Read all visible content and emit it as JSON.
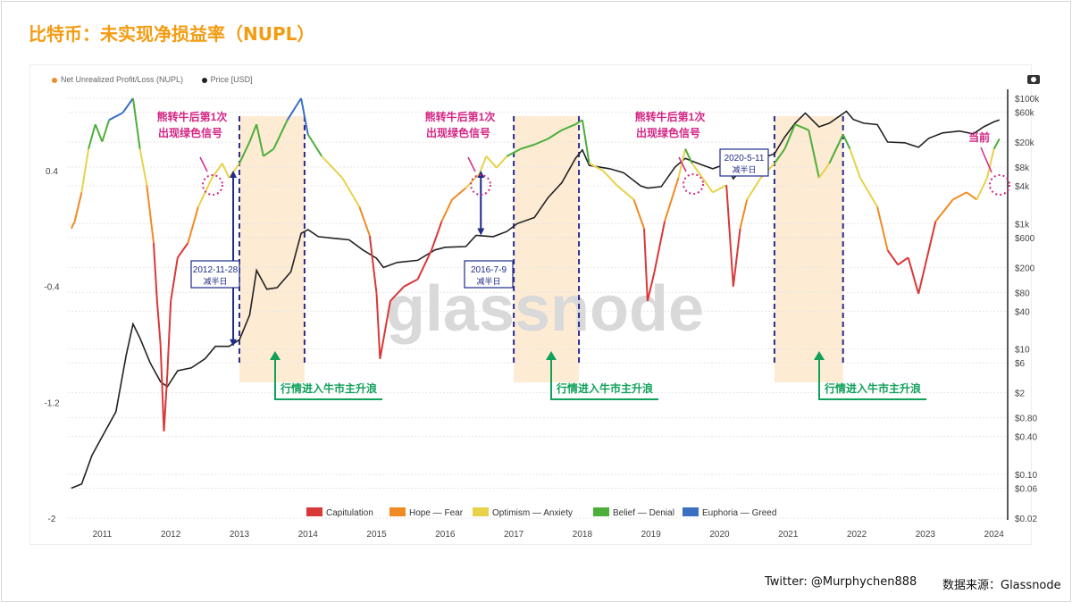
{
  "page": {
    "title": "比特币：未实现净损益率（NUPL）",
    "footer_twitter": "Twitter: @Murphychen888",
    "footer_source": "数据来源：Glassnode"
  },
  "chart_data": {
    "type": "line",
    "x_range": [
      2010.5,
      2024.2
    ],
    "x_ticks": [
      "2011",
      "2012",
      "2013",
      "2014",
      "2015",
      "2016",
      "2017",
      "2018",
      "2019",
      "2020",
      "2021",
      "2022",
      "2023",
      "2024"
    ],
    "left_axis": {
      "ticks": [
        "0.4",
        "-0.4",
        "-1.2",
        "-2"
      ],
      "values": [
        0.4,
        -0.4,
        -1.2,
        -2
      ],
      "range": [
        -2,
        0.9
      ]
    },
    "right_axis": {
      "type": "log",
      "ticks": [
        "$100k",
        "$60k",
        "$20k",
        "$8k",
        "$4k",
        "$1k",
        "$600",
        "$200",
        "$80",
        "$40",
        "$10",
        "$6",
        "$2",
        "$0.80",
        "$0.40",
        "$0.10",
        "$0.06",
        "$0.02"
      ],
      "values": [
        100000,
        60000,
        20000,
        8000,
        4000,
        1000,
        600,
        200,
        80,
        40,
        10,
        6,
        2,
        0.8,
        0.4,
        0.1,
        0.06,
        0.02
      ]
    },
    "legend_top": [
      {
        "name": "Net Unrealized Profit/Loss (NUPL)",
        "color": "#f08a24"
      },
      {
        "name": "Price [USD]",
        "color": "#222222"
      }
    ],
    "legend_bottom": [
      {
        "name": "Capitulation",
        "color": "#d93838"
      },
      {
        "name": "Hope — Fear",
        "color": "#f08a24"
      },
      {
        "name": "Optimism — Anxiety",
        "color": "#e8d24a"
      },
      {
        "name": "Belief — Denial",
        "color": "#4caf3a"
      },
      {
        "name": "Euphoria — Greed",
        "color": "#3b6fc4"
      }
    ],
    "zone_colors": {
      "capitulation": "#d93838",
      "hope": "#f08a24",
      "optimism": "#e8d24a",
      "belief": "#4caf3a",
      "euphoria": "#3b6fc4"
    },
    "series": [
      {
        "name": "Net Unrealized Profit/Loss (NUPL)",
        "points": [
          [
            2010.55,
            0.0
          ],
          [
            2010.6,
            0.05
          ],
          [
            2010.7,
            0.25
          ],
          [
            2010.8,
            0.55
          ],
          [
            2010.9,
            0.72
          ],
          [
            2011.0,
            0.6
          ],
          [
            2011.1,
            0.75
          ],
          [
            2011.3,
            0.8
          ],
          [
            2011.45,
            0.9
          ],
          [
            2011.55,
            0.55
          ],
          [
            2011.65,
            0.3
          ],
          [
            2011.75,
            -0.1
          ],
          [
            2011.8,
            -0.5
          ],
          [
            2011.85,
            -0.8
          ],
          [
            2011.9,
            -1.4
          ],
          [
            2011.95,
            -1.0
          ],
          [
            2012.0,
            -0.5
          ],
          [
            2012.1,
            -0.2
          ],
          [
            2012.25,
            -0.1
          ],
          [
            2012.4,
            0.15
          ],
          [
            2012.6,
            0.35
          ],
          [
            2012.75,
            0.45
          ],
          [
            2012.85,
            0.35
          ],
          [
            2013.0,
            0.45
          ],
          [
            2013.15,
            0.6
          ],
          [
            2013.25,
            0.72
          ],
          [
            2013.35,
            0.5
          ],
          [
            2013.5,
            0.55
          ],
          [
            2013.7,
            0.75
          ],
          [
            2013.9,
            0.9
          ],
          [
            2014.0,
            0.65
          ],
          [
            2014.2,
            0.5
          ],
          [
            2014.5,
            0.35
          ],
          [
            2014.75,
            0.15
          ],
          [
            2014.9,
            -0.05
          ],
          [
            2015.0,
            -0.45
          ],
          [
            2015.05,
            -0.9
          ],
          [
            2015.2,
            -0.5
          ],
          [
            2015.4,
            -0.4
          ],
          [
            2015.6,
            -0.35
          ],
          [
            2015.8,
            -0.15
          ],
          [
            2015.95,
            0.05
          ],
          [
            2016.1,
            0.2
          ],
          [
            2016.3,
            0.28
          ],
          [
            2016.5,
            0.38
          ],
          [
            2016.6,
            0.5
          ],
          [
            2016.75,
            0.42
          ],
          [
            2016.9,
            0.5
          ],
          [
            2017.1,
            0.55
          ],
          [
            2017.3,
            0.58
          ],
          [
            2017.5,
            0.62
          ],
          [
            2017.7,
            0.68
          ],
          [
            2017.9,
            0.72
          ],
          [
            2018.0,
            0.75
          ],
          [
            2018.1,
            0.45
          ],
          [
            2018.3,
            0.4
          ],
          [
            2018.5,
            0.3
          ],
          [
            2018.75,
            0.2
          ],
          [
            2018.9,
            0.0
          ],
          [
            2018.95,
            -0.5
          ],
          [
            2019.05,
            -0.3
          ],
          [
            2019.2,
            0.05
          ],
          [
            2019.4,
            0.35
          ],
          [
            2019.5,
            0.55
          ],
          [
            2019.6,
            0.45
          ],
          [
            2019.75,
            0.35
          ],
          [
            2019.9,
            0.25
          ],
          [
            2020.1,
            0.3
          ],
          [
            2020.2,
            -0.4
          ],
          [
            2020.3,
            0.0
          ],
          [
            2020.4,
            0.2
          ],
          [
            2020.6,
            0.35
          ],
          [
            2020.8,
            0.45
          ],
          [
            2020.95,
            0.55
          ],
          [
            2021.1,
            0.72
          ],
          [
            2021.3,
            0.68
          ],
          [
            2021.45,
            0.35
          ],
          [
            2021.6,
            0.45
          ],
          [
            2021.8,
            0.65
          ],
          [
            2021.9,
            0.55
          ],
          [
            2022.05,
            0.35
          ],
          [
            2022.3,
            0.15
          ],
          [
            2022.45,
            -0.15
          ],
          [
            2022.6,
            -0.25
          ],
          [
            2022.75,
            -0.2
          ],
          [
            2022.9,
            -0.45
          ],
          [
            2023.0,
            -0.25
          ],
          [
            2023.15,
            0.05
          ],
          [
            2023.4,
            0.2
          ],
          [
            2023.6,
            0.25
          ],
          [
            2023.75,
            0.2
          ],
          [
            2023.9,
            0.35
          ],
          [
            2024.0,
            0.55
          ],
          [
            2024.08,
            0.62
          ]
        ]
      },
      {
        "name": "Price [USD]",
        "points": [
          [
            2010.55,
            0.06
          ],
          [
            2010.7,
            0.07
          ],
          [
            2010.85,
            0.2
          ],
          [
            2011.0,
            0.4
          ],
          [
            2011.2,
            1.0
          ],
          [
            2011.35,
            8
          ],
          [
            2011.45,
            25
          ],
          [
            2011.55,
            15
          ],
          [
            2011.7,
            6
          ],
          [
            2011.85,
            3
          ],
          [
            2011.95,
            2.5
          ],
          [
            2012.1,
            4.5
          ],
          [
            2012.3,
            5
          ],
          [
            2012.5,
            7
          ],
          [
            2012.65,
            11
          ],
          [
            2012.85,
            11
          ],
          [
            2013.0,
            14
          ],
          [
            2013.15,
            35
          ],
          [
            2013.25,
            180
          ],
          [
            2013.4,
            90
          ],
          [
            2013.55,
            95
          ],
          [
            2013.75,
            170
          ],
          [
            2013.9,
            700
          ],
          [
            2014.0,
            800
          ],
          [
            2014.15,
            620
          ],
          [
            2014.4,
            580
          ],
          [
            2014.6,
            550
          ],
          [
            2014.8,
            380
          ],
          [
            2015.0,
            280
          ],
          [
            2015.1,
            200
          ],
          [
            2015.3,
            240
          ],
          [
            2015.6,
            260
          ],
          [
            2015.85,
            380
          ],
          [
            2016.0,
            420
          ],
          [
            2016.3,
            430
          ],
          [
            2016.45,
            650
          ],
          [
            2016.7,
            620
          ],
          [
            2016.9,
            750
          ],
          [
            2017.05,
            1000
          ],
          [
            2017.3,
            1250
          ],
          [
            2017.5,
            2600
          ],
          [
            2017.7,
            4500
          ],
          [
            2017.9,
            11000
          ],
          [
            2018.0,
            15000
          ],
          [
            2018.1,
            8500
          ],
          [
            2018.4,
            7500
          ],
          [
            2018.6,
            6500
          ],
          [
            2018.85,
            4000
          ],
          [
            2018.95,
            3700
          ],
          [
            2019.15,
            3900
          ],
          [
            2019.35,
            8000
          ],
          [
            2019.5,
            11000
          ],
          [
            2019.7,
            9000
          ],
          [
            2019.9,
            7500
          ],
          [
            2020.1,
            9000
          ],
          [
            2020.2,
            5200
          ],
          [
            2020.4,
            9000
          ],
          [
            2020.6,
            11000
          ],
          [
            2020.8,
            13000
          ],
          [
            2020.95,
            24000
          ],
          [
            2021.1,
            40000
          ],
          [
            2021.25,
            58000
          ],
          [
            2021.45,
            35000
          ],
          [
            2021.6,
            40000
          ],
          [
            2021.85,
            62000
          ],
          [
            2021.95,
            46000
          ],
          [
            2022.1,
            40000
          ],
          [
            2022.3,
            38000
          ],
          [
            2022.45,
            20000
          ],
          [
            2022.7,
            19500
          ],
          [
            2022.9,
            16500
          ],
          [
            2023.05,
            23000
          ],
          [
            2023.25,
            28000
          ],
          [
            2023.5,
            30000
          ],
          [
            2023.7,
            27000
          ],
          [
            2023.85,
            35000
          ],
          [
            2024.0,
            42000
          ],
          [
            2024.08,
            45000
          ]
        ]
      }
    ],
    "bull_bands": [
      [
        2013.0,
        2013.95
      ],
      [
        2017.0,
        2017.95
      ],
      [
        2020.8,
        2021.8
      ]
    ],
    "halving_dates": [
      [
        2012.91,
        11
      ],
      [
        2016.52,
        650
      ],
      [
        2020.36,
        8700
      ]
    ],
    "halving_boxes": [
      {
        "x": 2012.91,
        "date": "2012-11-28",
        "label": "减半日"
      },
      {
        "x": 2016.52,
        "date": "2016-7-9",
        "label": "减半日"
      },
      {
        "x": 2020.36,
        "date": "2020-5-11",
        "label": "减半日"
      }
    ],
    "bear_to_bull_signal": {
      "line1": "熊转牛后第1次",
      "line2": "出现绿色信号"
    },
    "signal_circles": [
      [
        2012.7,
        0.55
      ],
      [
        2016.55,
        0.55
      ],
      [
        2019.55,
        0.55
      ],
      [
        2024.1,
        0.55
      ]
    ],
    "current_label": "当前",
    "bull_wave_label": "行情进入牛市主升浪",
    "watermark": "glassnode"
  }
}
